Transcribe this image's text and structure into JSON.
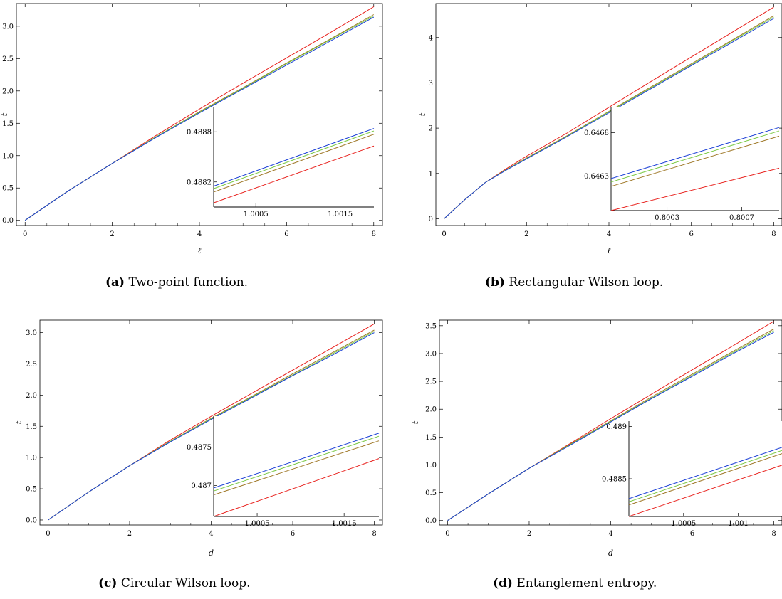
{
  "chart_data": [
    {
      "type": "line",
      "caption_tag": "(a)",
      "caption_text": "Two-point function.",
      "xlabel": "ℓ",
      "ylabel": "t",
      "xlim": [
        -0.2,
        8.2
      ],
      "ylim": [
        -0.08,
        3.35
      ],
      "xticks": [
        "0",
        "2",
        "4",
        "6",
        "8"
      ],
      "yticks": [
        "0.0",
        "0.5",
        "1.0",
        "1.5",
        "2.0",
        "2.5",
        "3.0"
      ],
      "series": [
        {
          "color": "#e8201c",
          "x": [
            0,
            1,
            2,
            3,
            4,
            5,
            6,
            7,
            8
          ],
          "y": [
            0,
            0.46,
            0.88,
            1.31,
            1.72,
            2.12,
            2.51,
            2.9,
            3.3
          ]
        },
        {
          "color": "#a07a2a",
          "x": [
            0,
            1,
            2,
            3,
            4,
            5,
            6,
            7,
            8
          ],
          "y": [
            0,
            0.46,
            0.88,
            1.29,
            1.68,
            2.05,
            2.43,
            2.8,
            3.18
          ]
        },
        {
          "color": "#7ac943",
          "x": [
            0,
            1,
            2,
            3,
            4,
            5,
            6,
            7,
            8
          ],
          "y": [
            0,
            0.46,
            0.88,
            1.29,
            1.67,
            2.04,
            2.42,
            2.79,
            3.16
          ]
        },
        {
          "color": "#1a3fd6",
          "x": [
            0,
            1,
            2,
            3,
            4,
            5,
            6,
            7,
            8
          ],
          "y": [
            0,
            0.46,
            0.88,
            1.28,
            1.66,
            2.03,
            2.4,
            2.77,
            3.14
          ]
        }
      ],
      "inset": {
        "xlim": [
          1.0,
          1.0019
        ],
        "ylim": [
          0.4879,
          0.4891
        ],
        "xticks": [
          {
            "v": 1.0005,
            "label": "1.0005"
          },
          {
            "v": 1.0015,
            "label": "1.0015"
          }
        ],
        "yticks": [
          {
            "v": 0.4882,
            "label": "0.4882"
          },
          {
            "v": 0.4888,
            "label": "0.4888"
          }
        ],
        "lines": [
          {
            "color": "#e8201c",
            "y0": 0.48795,
            "y1": 0.48863
          },
          {
            "color": "#a07a2a",
            "y0": 0.48808,
            "y1": 0.48877
          },
          {
            "color": "#7ac943",
            "y0": 0.48812,
            "y1": 0.48881
          },
          {
            "color": "#1a3fd6",
            "y0": 0.48815,
            "y1": 0.48884
          }
        ]
      }
    },
    {
      "type": "line",
      "caption_tag": "(b)",
      "caption_text": "Rectangular Wilson loop.",
      "xlabel": "ℓ",
      "ylabel": "t",
      "xlim": [
        -0.2,
        8.2
      ],
      "ylim": [
        -0.15,
        4.75
      ],
      "xticks": [
        "0",
        "2",
        "4",
        "6",
        "8"
      ],
      "yticks": [
        "0",
        "1",
        "2",
        "3",
        "4"
      ],
      "series": [
        {
          "color": "#e8201c",
          "x": [
            0,
            0.5,
            1,
            1.5,
            2,
            3,
            4,
            5,
            6,
            7,
            8
          ],
          "y": [
            0,
            0.42,
            0.8,
            1.1,
            1.38,
            1.9,
            2.46,
            3.02,
            3.57,
            4.12,
            4.67
          ]
        },
        {
          "color": "#a07a2a",
          "x": [
            0,
            0.5,
            1,
            1.5,
            2,
            3,
            4,
            5,
            6,
            7,
            8
          ],
          "y": [
            0,
            0.42,
            0.8,
            1.08,
            1.34,
            1.84,
            2.37,
            2.9,
            3.42,
            3.95,
            4.48
          ]
        },
        {
          "color": "#7ac943",
          "x": [
            0,
            0.5,
            1,
            1.5,
            2,
            3,
            4,
            5,
            6,
            7,
            8
          ],
          "y": [
            0,
            0.42,
            0.8,
            1.08,
            1.33,
            1.83,
            2.36,
            2.88,
            3.4,
            3.93,
            4.45
          ]
        },
        {
          "color": "#1a3fd6",
          "x": [
            0,
            0.5,
            1,
            1.5,
            2,
            3,
            4,
            5,
            6,
            7,
            8
          ],
          "y": [
            0,
            0.42,
            0.8,
            1.07,
            1.32,
            1.82,
            2.34,
            2.86,
            3.38,
            3.9,
            4.42
          ]
        }
      ],
      "inset": {
        "xlim": [
          0.8,
          0.8009
        ],
        "ylim": [
          0.6459,
          0.6471
        ],
        "xticks": [
          {
            "v": 0.8003,
            "label": "0.8003"
          },
          {
            "v": 0.8007,
            "label": "0.8007"
          }
        ],
        "yticks": [
          {
            "v": 0.6463,
            "label": "0.6463"
          },
          {
            "v": 0.6468,
            "label": "0.6468"
          }
        ],
        "lines": [
          {
            "color": "#e8201c",
            "y0": 0.6459,
            "y1": 0.64639
          },
          {
            "color": "#a07a2a",
            "y0": 0.64618,
            "y1": 0.64676
          },
          {
            "color": "#7ac943",
            "y0": 0.64623,
            "y1": 0.64682
          },
          {
            "color": "#1a3fd6",
            "y0": 0.64627,
            "y1": 0.64686
          }
        ]
      }
    },
    {
      "type": "line",
      "caption_tag": "(c)",
      "caption_text": "Circular Wilson loop.",
      "xlabel": "d",
      "ylabel": "t",
      "xlim": [
        -0.2,
        8.2
      ],
      "ylim": [
        -0.08,
        3.2
      ],
      "xticks": [
        "0",
        "2",
        "4",
        "6",
        "8"
      ],
      "yticks": [
        "0.0",
        "0.5",
        "1.0",
        "1.5",
        "2.0",
        "2.5",
        "3.0"
      ],
      "series": [
        {
          "color": "#e8201c",
          "x": [
            0,
            1,
            2,
            3,
            4,
            5,
            6,
            7,
            8
          ],
          "y": [
            0,
            0.45,
            0.87,
            1.28,
            1.66,
            2.03,
            2.4,
            2.77,
            3.14
          ]
        },
        {
          "color": "#a07a2a",
          "x": [
            0,
            1,
            2,
            3,
            4,
            5,
            6,
            7,
            8
          ],
          "y": [
            0,
            0.45,
            0.87,
            1.26,
            1.63,
            1.98,
            2.34,
            2.69,
            3.04
          ]
        },
        {
          "color": "#7ac943",
          "x": [
            0,
            1,
            2,
            3,
            4,
            5,
            6,
            7,
            8
          ],
          "y": [
            0,
            0.45,
            0.87,
            1.26,
            1.62,
            1.97,
            2.32,
            2.67,
            3.02
          ]
        },
        {
          "color": "#1a3fd6",
          "x": [
            0,
            1,
            2,
            3,
            4,
            5,
            6,
            7,
            8
          ],
          "y": [
            0,
            0.45,
            0.87,
            1.25,
            1.61,
            1.96,
            2.31,
            2.65,
            3.0
          ]
        }
      ],
      "inset": {
        "xlim": [
          1.0,
          1.0019
        ],
        "ylim": [
          0.4866,
          0.4879
        ],
        "xticks": [
          {
            "v": 1.0005,
            "label": "1.0005"
          },
          {
            "v": 1.0015,
            "label": "1.0015"
          }
        ],
        "yticks": [
          {
            "v": 0.487,
            "label": "0.487"
          },
          {
            "v": 0.4875,
            "label": "0.4875"
          }
        ],
        "lines": [
          {
            "color": "#e8201c",
            "y0": 0.4866,
            "y1": 0.48735
          },
          {
            "color": "#a07a2a",
            "y0": 0.48688,
            "y1": 0.48758
          },
          {
            "color": "#7ac943",
            "y0": 0.48693,
            "y1": 0.48764
          },
          {
            "color": "#1a3fd6",
            "y0": 0.48697,
            "y1": 0.48768
          }
        ]
      }
    },
    {
      "type": "line",
      "caption_tag": "(d)",
      "caption_text": "Entanglement entropy.",
      "xlabel": "d",
      "ylabel": "t",
      "xlim": [
        -0.2,
        8.2
      ],
      "ylim": [
        -0.08,
        3.6
      ],
      "xticks": [
        "0",
        "2",
        "4",
        "6",
        "8"
      ],
      "yticks": [
        "0.0",
        "0.5",
        "1.0",
        "1.5",
        "2.0",
        "2.5",
        "3.0",
        "3.5"
      ],
      "series": [
        {
          "color": "#e8201c",
          "x": [
            0,
            1,
            2,
            3,
            4,
            5,
            6,
            7,
            8
          ],
          "y": [
            0,
            0.48,
            0.94,
            1.38,
            1.83,
            2.27,
            2.71,
            3.14,
            3.58
          ]
        },
        {
          "color": "#a07a2a",
          "x": [
            0,
            1,
            2,
            3,
            4,
            5,
            6,
            7,
            8
          ],
          "y": [
            0,
            0.48,
            0.94,
            1.37,
            1.79,
            2.22,
            2.63,
            3.04,
            3.44
          ]
        },
        {
          "color": "#7ac943",
          "x": [
            0,
            1,
            2,
            3,
            4,
            5,
            6,
            7,
            8
          ],
          "y": [
            0,
            0.48,
            0.94,
            1.36,
            1.78,
            2.2,
            2.61,
            3.02,
            3.41
          ]
        },
        {
          "color": "#1a3fd6",
          "x": [
            0,
            1,
            2,
            3,
            4,
            5,
            6,
            7,
            8
          ],
          "y": [
            0,
            0.48,
            0.94,
            1.35,
            1.77,
            2.19,
            2.59,
            3.0,
            3.38
          ]
        }
      ],
      "inset": {
        "xlim": [
          1.0,
          1.0014
        ],
        "ylim": [
          0.48814,
          0.48905
        ],
        "xticks": [
          {
            "v": 1.0005,
            "label": "1.0005"
          },
          {
            "v": 1.001,
            "label": "1.001"
          }
        ],
        "yticks": [
          {
            "v": 0.4885,
            "label": "0.4885"
          },
          {
            "v": 0.489,
            "label": "0.489"
          }
        ],
        "lines": [
          {
            "color": "#e8201c",
            "y0": 0.48814,
            "y1": 0.48863
          },
          {
            "color": "#a07a2a",
            "y0": 0.48825,
            "y1": 0.48874
          },
          {
            "color": "#7ac943",
            "y0": 0.48828,
            "y1": 0.48877
          },
          {
            "color": "#1a3fd6",
            "y0": 0.48831,
            "y1": 0.4888
          }
        ]
      }
    }
  ]
}
